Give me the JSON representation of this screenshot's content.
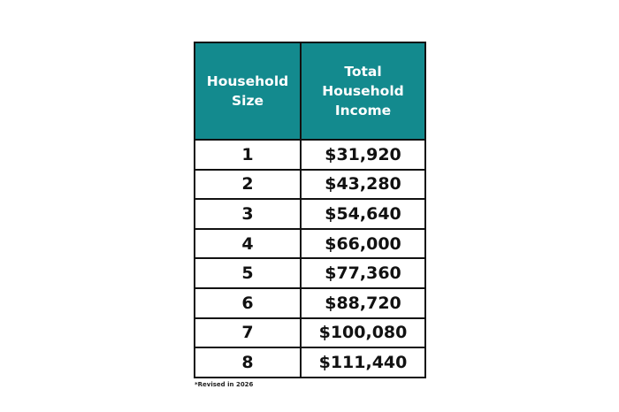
{
  "table": {
    "headers": [
      "Household Size",
      "Total Household Income"
    ],
    "header_lines": [
      [
        "Household",
        "Size"
      ],
      [
        "Total",
        "Household",
        "Income"
      ]
    ],
    "header_color": "#138a8e",
    "rows": [
      [
        "1",
        "$31,920"
      ],
      [
        "2",
        "$43,280"
      ],
      [
        "3",
        "$54,640"
      ],
      [
        "4",
        "$66,000"
      ],
      [
        "5",
        "$77,360"
      ],
      [
        "6",
        "$88,720"
      ],
      [
        "7",
        "$100,080"
      ],
      [
        "8",
        "$111,440"
      ]
    ]
  },
  "footnote": "*Revised in 2026"
}
